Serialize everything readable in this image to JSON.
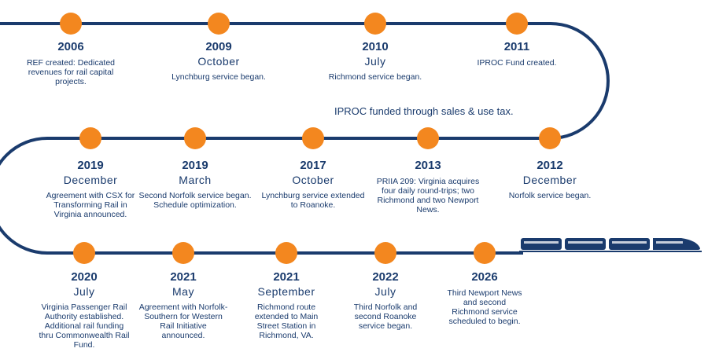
{
  "funding_note": "IPROC funded through sales & use tax.",
  "colors": {
    "line": "#1a3b6d",
    "dot": "#f3871f",
    "text": "#1a3b6d"
  },
  "events": [
    {
      "year": "2006",
      "month": "",
      "desc": "REF created: Dedicated revenues for rail capital projects."
    },
    {
      "year": "2009",
      "month": "October",
      "desc": "Lynchburg service began."
    },
    {
      "year": "2010",
      "month": "July",
      "desc": "Richmond service began."
    },
    {
      "year": "2011",
      "month": "",
      "desc": "IPROC Fund created."
    },
    {
      "year": "2012",
      "month": "December",
      "desc": "Norfolk service began."
    },
    {
      "year": "2013",
      "month": "",
      "desc": "PRIIA 209: Virginia acquires four daily round-trips; two Richmond and two Newport News."
    },
    {
      "year": "2017",
      "month": "October",
      "desc": "Lynchburg service extended to Roanoke."
    },
    {
      "year": "2019",
      "month": "March",
      "desc": "Second Norfolk service began. Schedule optimization."
    },
    {
      "year": "2019",
      "month": "December",
      "desc": "Agreement with CSX for Transforming Rail in Virginia announced."
    },
    {
      "year": "2020",
      "month": "July",
      "desc": "Virginia Passenger Rail Authority established. Additional rail funding thru Commonwealth Rail Fund."
    },
    {
      "year": "2021",
      "month": "May",
      "desc": "Agreement with Norfolk-Southern for Western Rail Initiative announced."
    },
    {
      "year": "2021",
      "month": "September",
      "desc": "Richmond route extended to Main Street Station in Richmond, VA."
    },
    {
      "year": "2022",
      "month": "July",
      "desc": "Third Norfolk and second Roanoke service began."
    },
    {
      "year": "2026",
      "month": "",
      "desc": "Third Newport News and second Richmond service scheduled to begin."
    }
  ]
}
